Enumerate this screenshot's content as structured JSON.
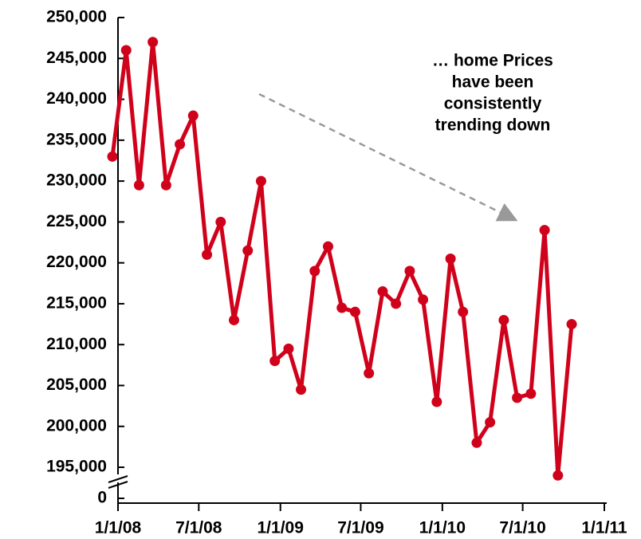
{
  "chart_data": {
    "type": "line",
    "annotation": [
      "… home Prices",
      "have been",
      "consistently",
      "trending down"
    ],
    "x": [
      "2008-01-01",
      "2008-02-01",
      "2008-03-01",
      "2008-04-01",
      "2008-05-01",
      "2008-06-01",
      "2008-07-01",
      "2008-08-01",
      "2008-09-01",
      "2008-10-01",
      "2008-11-01",
      "2008-12-01",
      "2009-01-01",
      "2009-02-01",
      "2009-03-01",
      "2009-04-01",
      "2009-05-01",
      "2009-06-01",
      "2009-07-01",
      "2009-08-01",
      "2009-09-01",
      "2009-10-01",
      "2009-11-01",
      "2009-12-01",
      "2010-01-01",
      "2010-02-01",
      "2010-03-01",
      "2010-04-01",
      "2010-05-01",
      "2010-06-01",
      "2010-07-01",
      "2010-08-01",
      "2010-09-01",
      "2010-10-01",
      "2010-11-01"
    ],
    "series": [
      {
        "color": "#d0021b",
        "values": [
          233000,
          246000,
          229500,
          247000,
          229500,
          234500,
          238000,
          221000,
          225000,
          213000,
          221500,
          230000,
          208000,
          209500,
          204500,
          219000,
          222000,
          214500,
          214000,
          206500,
          216500,
          215000,
          219000,
          215500,
          203000,
          220500,
          214000,
          198000,
          200500,
          213000,
          203500,
          204000,
          224000,
          194000,
          212500
        ]
      }
    ],
    "xlim": [
      "2008-01-01",
      "2011-01-01"
    ],
    "xticks": [
      {
        "value": "2008-01-01",
        "label": "1/1/08"
      },
      {
        "value": "2008-07-01",
        "label": "7/1/08"
      },
      {
        "value": "2009-01-01",
        "label": "1/1/09"
      },
      {
        "value": "2009-07-01",
        "label": "7/1/09"
      },
      {
        "value": "2010-01-01",
        "label": "1/1/10"
      },
      {
        "value": "2010-07-01",
        "label": "7/1/10"
      },
      {
        "value": "2011-01-01",
        "label": "1/1/11"
      }
    ],
    "ylim": [
      191200,
      250000
    ],
    "yticks": [
      0,
      {
        "value": 195000,
        "label": "195,000"
      },
      {
        "value": 200000,
        "label": "200,000"
      },
      {
        "value": 205000,
        "label": "205,000"
      },
      {
        "value": 210000,
        "label": "210,000"
      },
      {
        "value": 215000,
        "label": "215,000"
      },
      {
        "value": 220000,
        "label": "220,000"
      },
      {
        "value": 225000,
        "label": "225,000"
      },
      {
        "value": 230000,
        "label": "230,000"
      },
      {
        "value": 235000,
        "label": "235,000"
      },
      {
        "value": 240000,
        "label": "240,000"
      },
      {
        "value": 245000,
        "label": "245,000"
      },
      {
        "value": 250000,
        "label": "250,000"
      }
    ],
    "axis_break": true
  }
}
